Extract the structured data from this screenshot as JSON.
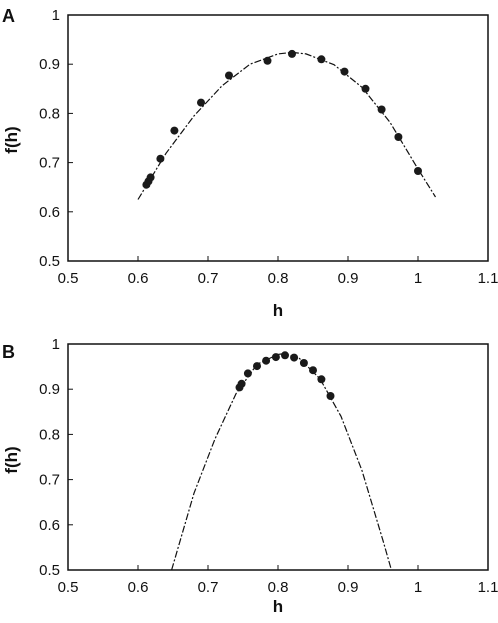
{
  "chart_data": [
    {
      "type": "scatter",
      "panel_label": "A",
      "xlabel": "h",
      "ylabel": "f(h)",
      "xlim": [
        0.5,
        1.1
      ],
      "ylim": [
        0.5,
        1.0
      ],
      "xticks": [
        "0.5",
        "0.6",
        "0.7",
        "0.8",
        "0.9",
        "1",
        "1.1"
      ],
      "yticks": [
        "0.5",
        "0.6",
        "0.7",
        "0.8",
        "0.9",
        "1"
      ],
      "grid": false,
      "series": [
        {
          "kind": "points",
          "x": [
            0.612,
            0.615,
            0.618,
            0.632,
            0.652,
            0.69,
            0.73,
            0.785,
            0.82,
            0.862,
            0.895,
            0.925,
            0.948,
            0.972,
            1.0
          ],
          "y": [
            0.655,
            0.662,
            0.67,
            0.708,
            0.765,
            0.822,
            0.877,
            0.907,
            0.921,
            0.91,
            0.885,
            0.85,
            0.808,
            0.752,
            0.683
          ]
        },
        {
          "kind": "fit",
          "style": "dashed",
          "x": [
            0.6,
            0.64,
            0.68,
            0.72,
            0.76,
            0.8,
            0.82,
            0.84,
            0.88,
            0.92,
            0.96,
            1.0,
            1.025
          ],
          "y": [
            0.625,
            0.719,
            0.795,
            0.856,
            0.9,
            0.921,
            0.924,
            0.921,
            0.899,
            0.853,
            0.782,
            0.687,
            0.63
          ]
        }
      ]
    },
    {
      "type": "scatter",
      "panel_label": "B",
      "xlabel": "h",
      "ylabel": "f(h)",
      "xlim": [
        0.5,
        1.1
      ],
      "ylim": [
        0.5,
        1.0
      ],
      "xticks": [
        "0.5",
        "0.6",
        "0.7",
        "0.8",
        "0.9",
        "1",
        "1.1"
      ],
      "yticks": [
        "0.5",
        "0.6",
        "0.7",
        "0.8",
        "0.9",
        "1"
      ],
      "grid": false,
      "series": [
        {
          "kind": "points",
          "x": [
            0.745,
            0.748,
            0.757,
            0.77,
            0.783,
            0.797,
            0.81,
            0.823,
            0.837,
            0.85,
            0.862,
            0.875
          ],
          "y": [
            0.904,
            0.912,
            0.935,
            0.951,
            0.963,
            0.971,
            0.975,
            0.97,
            0.958,
            0.942,
            0.922,
            0.885
          ]
        },
        {
          "kind": "fit",
          "style": "dashed",
          "x": [
            0.648,
            0.68,
            0.71,
            0.74,
            0.77,
            0.8,
            0.806,
            0.83,
            0.86,
            0.89,
            0.92,
            0.95,
            0.962
          ],
          "y": [
            0.5,
            0.67,
            0.79,
            0.89,
            0.955,
            0.977,
            0.978,
            0.969,
            0.923,
            0.84,
            0.72,
            0.565,
            0.5
          ]
        }
      ]
    }
  ]
}
